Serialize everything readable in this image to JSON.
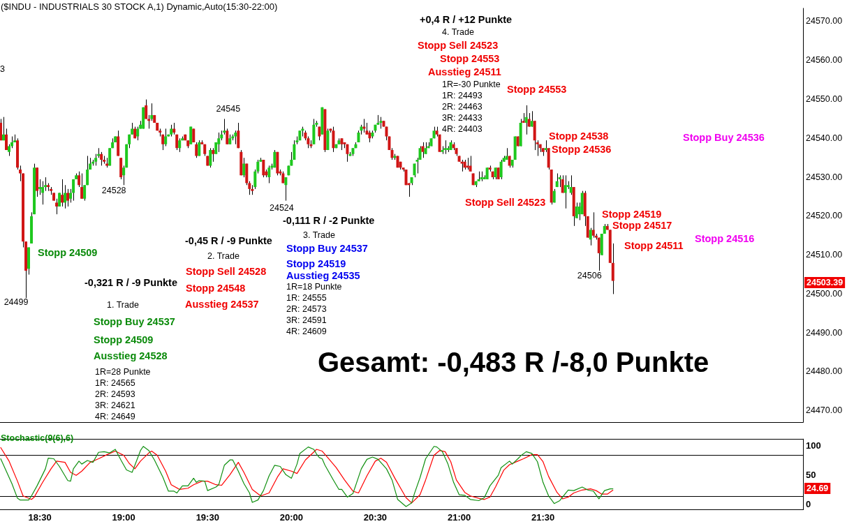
{
  "chart_data": [
    {
      "type": "candlestick",
      "title": "($INDU - INDUSTRIALS 30 STOCK A,1) Dynamic,Auto(15:30-22:00)",
      "x": [
        18.2667,
        18.2833,
        18.3,
        18.3167,
        18.3333,
        18.35,
        18.3667,
        18.3833,
        18.4,
        18.4167,
        18.4333,
        18.45,
        18.4667,
        18.4833,
        18.5,
        18.5167,
        18.5333,
        18.55,
        18.5667,
        18.5833,
        18.6,
        18.6167,
        18.6333,
        18.65,
        18.6667,
        18.6833,
        18.7,
        18.7167,
        18.7333,
        18.75,
        18.7667,
        18.7833,
        18.8,
        18.8167,
        18.8333,
        18.85,
        18.8667,
        18.8833,
        18.9,
        18.9167,
        18.9333,
        18.95,
        18.9667,
        18.9833,
        19,
        19.0167,
        19.0333,
        19.05,
        19.0667,
        19.0833,
        19.1,
        19.1167,
        19.1333,
        19.15,
        19.1667,
        19.1833,
        19.2,
        19.2167,
        19.2333,
        19.25,
        19.2667,
        19.2833,
        19.3,
        19.3167,
        19.3333,
        19.35,
        19.3667,
        19.3833,
        19.4,
        19.4167,
        19.4333,
        19.45,
        19.4667,
        19.4833,
        19.5,
        19.5167,
        19.5333,
        19.55,
        19.5667,
        19.5833,
        19.6,
        19.6167,
        19.6333,
        19.65,
        19.6667,
        19.6833,
        19.7,
        19.7167,
        19.7333,
        19.75,
        19.7667,
        19.7833,
        19.8,
        19.8167,
        19.8333,
        19.85,
        19.8667,
        19.8833,
        19.9,
        19.9167,
        19.9333,
        19.95,
        19.9667,
        19.9833,
        20,
        20.0167,
        20.0333,
        20.05,
        20.0667,
        20.0833,
        20.1,
        20.1167,
        20.1333,
        20.15,
        20.1667,
        20.1833,
        20.2,
        20.2167,
        20.2333,
        20.25,
        20.2667,
        20.2833,
        20.3,
        20.3167,
        20.3333,
        20.35,
        20.3667,
        20.3833,
        20.4,
        20.4167,
        20.4333,
        20.45,
        20.4667,
        20.4833,
        20.5,
        20.5167,
        20.5333,
        20.55,
        20.5667,
        20.5833,
        20.6,
        20.6167,
        20.6333,
        20.65,
        20.6667,
        20.6833,
        20.7,
        20.7167,
        20.7333,
        20.75,
        20.7667,
        20.7833,
        20.8,
        20.8167,
        20.8333,
        20.85,
        20.8667,
        20.8833,
        20.9,
        20.9167,
        20.9333,
        20.95,
        20.9667,
        20.9833,
        21,
        21.0167,
        21.0333,
        21.05,
        21.0667,
        21.0833,
        21.1,
        21.1167,
        21.1333,
        21.15,
        21.1667,
        21.1833,
        21.2,
        21.2167,
        21.2333,
        21.25,
        21.2667,
        21.2833,
        21.3,
        21.3167,
        21.3333,
        21.35,
        21.3667,
        21.3833,
        21.4,
        21.4167,
        21.4333,
        21.45,
        21.4667,
        21.4833,
        21.5,
        21.5167,
        21.5333,
        21.55,
        21.5667,
        21.5833,
        21.6,
        21.6167,
        21.6333,
        21.65,
        21.6667,
        21.6833,
        21.7,
        21.7167,
        21.7333,
        21.75,
        21.7667,
        21.7833,
        21.8,
        21.8167,
        21.8333,
        21.85,
        21.8667,
        21.8833,
        21.9,
        21.9167
      ],
      "ohlc": [
        [
          24544,
          24545,
          24539.5,
          24539.5
        ],
        [
          24539.5,
          24545.5,
          24539.5,
          24541
        ],
        [
          24541,
          24542.5,
          24537,
          24537
        ],
        [
          24536.5,
          24538.5,
          24535.5,
          24538
        ],
        [
          24538,
          24540.5,
          24537.5,
          24539
        ],
        [
          24539,
          24541,
          24539,
          24539.5
        ],
        [
          24539.5,
          24540,
          24532,
          24532.5
        ],
        [
          24532,
          24533,
          24529,
          24531
        ],
        [
          24531,
          24531,
          24512,
          24513.5
        ],
        [
          24513.5,
          24513.5,
          24499,
          24506
        ],
        [
          24506.5,
          24512,
          24505,
          24512
        ],
        [
          24513,
          24521,
          24513,
          24520
        ],
        [
          24520.5,
          24533.5,
          24520.5,
          24532.5
        ],
        [
          24532.5,
          24532.5,
          24525,
          24526.5
        ],
        [
          24527,
          24529.5,
          24525.5,
          24527.5
        ],
        [
          24526,
          24529,
          24523,
          24527.5
        ],
        [
          24527.5,
          24530,
          24526.5,
          24528
        ],
        [
          24528,
          24528.5,
          24526.5,
          24527.5
        ],
        [
          24527,
          24527.5,
          24525.5,
          24526.5
        ],
        [
          24526,
          24526,
          24524,
          24524
        ],
        [
          24523.5,
          24524.5,
          24520.5,
          24522.5
        ],
        [
          24522.5,
          24526,
          24522.5,
          24526
        ],
        [
          24525.5,
          24529.5,
          24522.5,
          24523.5
        ],
        [
          24523.5,
          24528,
          24522,
          24526
        ],
        [
          24526,
          24527,
          24522.5,
          24524
        ],
        [
          24524.5,
          24527,
          24523.5,
          24526
        ],
        [
          24526,
          24529.5,
          24524,
          24529.5
        ],
        [
          24529.5,
          24531,
          24529.5,
          24530.5
        ],
        [
          24530.5,
          24531.5,
          24527.5,
          24528
        ],
        [
          24527.5,
          24531,
          24524.5,
          24524.5
        ],
        [
          24524.5,
          24528,
          24524,
          24528
        ],
        [
          24528,
          24535.5,
          24528,
          24532
        ],
        [
          24532,
          24535,
          24532,
          24533.5
        ],
        [
          24533.5,
          24534.5,
          24533,
          24534
        ],
        [
          24534,
          24536,
          24533,
          24535
        ],
        [
          24535.5,
          24537.5,
          24535,
          24536
        ],
        [
          24536,
          24536.5,
          24533,
          24534.5
        ],
        [
          24534.5,
          24535.5,
          24533.5,
          24534
        ],
        [
          24533.5,
          24535,
          24532.5,
          24533
        ],
        [
          24533,
          24537.5,
          24533,
          24537.5
        ],
        [
          24537.5,
          24540,
          24537.5,
          24539
        ],
        [
          24539,
          24540.5,
          24539,
          24540.5
        ],
        [
          24540.5,
          24542,
          24535.5,
          24535.5
        ],
        [
          24535,
          24535,
          24529.5,
          24530
        ],
        [
          24530.5,
          24533,
          24528,
          24532.5
        ],
        [
          24532.5,
          24538.5,
          24532.5,
          24538.5
        ],
        [
          24538.5,
          24541,
          24537.5,
          24541
        ],
        [
          24541,
          24544,
          24541,
          24542.5
        ],
        [
          24542.5,
          24543,
          24540,
          24540
        ],
        [
          24540.5,
          24543,
          24539.5,
          24542.5
        ],
        [
          24542.5,
          24544.5,
          24542.5,
          24543.5
        ],
        [
          24542.5,
          24548,
          24542.5,
          24548
        ],
        [
          24548.5,
          24550,
          24545,
          24545
        ],
        [
          24545,
          24546,
          24542.5,
          24544.5
        ],
        [
          24545,
          24549,
          24544.5,
          24546
        ],
        [
          24546,
          24546,
          24544,
          24544
        ],
        [
          24544,
          24544,
          24542,
          24542
        ],
        [
          24542,
          24542.5,
          24540.5,
          24541.5
        ],
        [
          24541,
          24541,
          24537,
          24538.5
        ],
        [
          24538.5,
          24542.5,
          24538,
          24540.5
        ],
        [
          24540.5,
          24541,
          24540.5,
          24541
        ],
        [
          24541,
          24543.5,
          24540.5,
          24542.5
        ],
        [
          24542.5,
          24544,
          24541,
          24541.5
        ],
        [
          24541,
          24541,
          24537,
          24537.5
        ],
        [
          24537.5,
          24540,
          24536.5,
          24539.5
        ],
        [
          24539.5,
          24540.5,
          24539.5,
          24540
        ],
        [
          24541,
          24541,
          24539.5,
          24539.5
        ],
        [
          24539.5,
          24539.5,
          24537.5,
          24538
        ],
        [
          24538.5,
          24543,
          24538.5,
          24543
        ],
        [
          24542.5,
          24542.5,
          24539,
          24539
        ],
        [
          24538.5,
          24539,
          24535,
          24535.5
        ],
        [
          24535.5,
          24539.5,
          24535.5,
          24539
        ],
        [
          24539,
          24539.5,
          24538.5,
          24538.5
        ],
        [
          24538.5,
          24538.5,
          24535.5,
          24536
        ],
        [
          24535.5,
          24535.5,
          24533,
          24533
        ],
        [
          24533,
          24537.5,
          24532.5,
          24537
        ],
        [
          24537,
          24537.5,
          24534,
          24536
        ],
        [
          24536,
          24539,
          24536,
          24539
        ],
        [
          24538.5,
          24541.5,
          24536.5,
          24540
        ],
        [
          24540,
          24542,
          24539.5,
          24541
        ],
        [
          24541.5,
          24545,
          24541,
          24542
        ],
        [
          24542,
          24542.5,
          24538.5,
          24538.5
        ],
        [
          24538.5,
          24541,
          24538.5,
          24540
        ],
        [
          24540,
          24541,
          24539.5,
          24540.5
        ],
        [
          24540.5,
          24542,
          24538.5,
          24541.5
        ],
        [
          24542,
          24544,
          24537.5,
          24537.5
        ],
        [
          24536.5,
          24537,
          24530.5,
          24530.5
        ],
        [
          24530.5,
          24535,
          24530,
          24533.5
        ],
        [
          24533.5,
          24533.5,
          24528,
          24528.5
        ],
        [
          24528.5,
          24529,
          24525.5,
          24527
        ],
        [
          24527,
          24528,
          24525.5,
          24526.5
        ],
        [
          24527.5,
          24532,
          24527,
          24531.5
        ],
        [
          24531.5,
          24534.5,
          24531,
          24534
        ],
        [
          24534,
          24535,
          24534,
          24534.5
        ],
        [
          24534.5,
          24534.5,
          24530,
          24530.5
        ],
        [
          24531.5,
          24532,
          24530,
          24530.5
        ],
        [
          24530,
          24533,
          24528.5,
          24532.5
        ],
        [
          24532.5,
          24533.5,
          24532,
          24533
        ],
        [
          24532.5,
          24537,
          24532.5,
          24536.5
        ],
        [
          24536.5,
          24536.5,
          24530.5,
          24531
        ],
        [
          24531.5,
          24532,
          24530.5,
          24531
        ],
        [
          24531,
          24531.5,
          24528.5,
          24528.5
        ],
        [
          24528,
          24530,
          24524,
          24530
        ],
        [
          24530.5,
          24533,
          24530.5,
          24533
        ],
        [
          24533,
          24536.5,
          24533,
          24534.5
        ],
        [
          24534.5,
          24539.5,
          24534.5,
          24538.5
        ],
        [
          24539,
          24540.5,
          24538.5,
          24539.5
        ],
        [
          24539.5,
          24542,
          24539.5,
          24542
        ],
        [
          24542,
          24543,
          24540.5,
          24542.5
        ],
        [
          24541.5,
          24542,
          24539.5,
          24540
        ],
        [
          24540,
          24540.5,
          24537.5,
          24538.5
        ],
        [
          24538.5,
          24539.5,
          24537.5,
          24538
        ],
        [
          24538.5,
          24545,
          24538.5,
          24543.5
        ],
        [
          24543.5,
          24544.5,
          24543,
          24544
        ],
        [
          24543,
          24543,
          24539.5,
          24540.5
        ],
        [
          24541,
          24548,
          24541,
          24548
        ],
        [
          24547.5,
          24547.5,
          24536.5,
          24537
        ],
        [
          24537,
          24542.5,
          24537,
          24542
        ],
        [
          24542.5,
          24542.5,
          24541.5,
          24542
        ],
        [
          24542,
          24543,
          24536.5,
          24537.5
        ],
        [
          24537.5,
          24538.5,
          24537.5,
          24538.5
        ],
        [
          24538.5,
          24540,
          24538.5,
          24539.5
        ],
        [
          24540,
          24540,
          24537,
          24538.5
        ],
        [
          24539,
          24539,
          24537.5,
          24538.5
        ],
        [
          24538.5,
          24538.5,
          24534,
          24536
        ],
        [
          24535.5,
          24536.5,
          24535.5,
          24536
        ],
        [
          24536,
          24537.5,
          24535.5,
          24537.5
        ],
        [
          24537.5,
          24539,
          24537.5,
          24538.5
        ],
        [
          24539,
          24542,
          24539,
          24541.5
        ],
        [
          24542,
          24543.5,
          24541,
          24543
        ],
        [
          24543,
          24545,
          24541.5,
          24542.5
        ],
        [
          24542,
          24544,
          24541,
          24541
        ],
        [
          24541.5,
          24542,
          24539,
          24540
        ],
        [
          24540.5,
          24542,
          24540,
          24541.5
        ],
        [
          24542,
          24543.5,
          24541.5,
          24543.5
        ],
        [
          24543.5,
          24546,
          24543.5,
          24544
        ],
        [
          24544,
          24545.5,
          24542.5,
          24544.5
        ],
        [
          24544.5,
          24544.5,
          24543,
          24543
        ],
        [
          24543,
          24543,
          24539.5,
          24540.5
        ],
        [
          24540.5,
          24540.5,
          24537,
          24537
        ],
        [
          24537,
          24537.5,
          24534.5,
          24535
        ],
        [
          24535,
          24536,
          24534.5,
          24535.5
        ],
        [
          24535.5,
          24535.5,
          24532.5,
          24532.5
        ],
        [
          24534,
          24534,
          24532,
          24532.5
        ],
        [
          24532.5,
          24532.5,
          24531.5,
          24532
        ],
        [
          24532,
          24532,
          24528,
          24528
        ],
        [
          24528.5,
          24528.5,
          24525,
          24528
        ],
        [
          24528.5,
          24530,
          24528,
          24530
        ],
        [
          24530.5,
          24533.5,
          24530,
          24533.5
        ],
        [
          24534,
          24535,
          24531,
          24534.5
        ],
        [
          24534.5,
          24538,
          24534.5,
          24537.5
        ],
        [
          24538,
          24539,
          24535,
          24536.5
        ],
        [
          24536,
          24539,
          24536,
          24537.5
        ],
        [
          24537.5,
          24539,
          24537.5,
          24538
        ],
        [
          24538,
          24540,
          24538,
          24540
        ],
        [
          24540,
          24543,
          24540,
          24542
        ],
        [
          24542,
          24543,
          24540.5,
          24541
        ],
        [
          24541,
          24541,
          24536.5,
          24536.5
        ],
        [
          24536.5,
          24538,
          24536,
          24537
        ],
        [
          24537,
          24539.5,
          24536,
          24537.5
        ],
        [
          24537,
          24538,
          24536.5,
          24537.5
        ],
        [
          24537,
          24539.5,
          24537,
          24539
        ],
        [
          24538.5,
          24539,
          24537,
          24537.5
        ],
        [
          24537.5,
          24537.5,
          24535.5,
          24536
        ],
        [
          24535.5,
          24535.5,
          24534,
          24534
        ],
        [
          24534,
          24534.5,
          24531.5,
          24533.5
        ],
        [
          24534,
          24534.5,
          24532,
          24532.5
        ],
        [
          24533,
          24535,
          24532,
          24532.5
        ],
        [
          24533,
          24535.5,
          24531.5,
          24531.5
        ],
        [
          24531,
          24531,
          24528,
          24528
        ],
        [
          24528,
          24529,
          24527.5,
          24529
        ],
        [
          24529,
          24531.5,
          24529,
          24529.5
        ],
        [
          24529.5,
          24531.5,
          24529,
          24530
        ],
        [
          24529.5,
          24530.5,
          24529.5,
          24530
        ],
        [
          24529.5,
          24532.5,
          24529.5,
          24532.5
        ],
        [
          24532.5,
          24533,
          24531.5,
          24532
        ],
        [
          24531.5,
          24531.5,
          24529.5,
          24530
        ],
        [
          24530,
          24532.5,
          24529.5,
          24532.5
        ],
        [
          24532.5,
          24532.5,
          24529.5,
          24529.5
        ],
        [
          24530,
          24534.5,
          24529.5,
          24534
        ],
        [
          24534,
          24535.5,
          24534,
          24535
        ],
        [
          24534.5,
          24537.5,
          24534.5,
          24535.5
        ],
        [
          24535.5,
          24535.5,
          24532.5,
          24533
        ],
        [
          24533,
          24534.5,
          24532.5,
          24534.5
        ],
        [
          24534.5,
          24540.5,
          24534.5,
          24540.5
        ],
        [
          24540.5,
          24540.5,
          24538,
          24538
        ],
        [
          24538,
          24545,
          24538,
          24544
        ],
        [
          24544.5,
          24546.5,
          24544,
          24544
        ],
        [
          24544,
          24548.5,
          24541,
          24545.5
        ],
        [
          24545,
          24546.5,
          24543,
          24543
        ],
        [
          24543,
          24547,
          24543,
          24544.5
        ],
        [
          24544.5,
          24544.5,
          24537,
          24539.5
        ],
        [
          24539,
          24539.5,
          24535.5,
          24538.5
        ],
        [
          24538.5,
          24538.5,
          24536.5,
          24537.5
        ],
        [
          24537.5,
          24537.5,
          24535.5,
          24536.5
        ],
        [
          24537,
          24539.5,
          24536.5,
          24537.5
        ],
        [
          24537.5,
          24537.5,
          24532,
          24532.5
        ],
        [
          24532,
          24532,
          24523,
          24523.5
        ],
        [
          24523.5,
          24527,
          24523.5,
          24526.5
        ],
        [
          24527.5,
          24531,
          24527.5,
          24529
        ],
        [
          24529.5,
          24530.5,
          24527.5,
          24530
        ],
        [
          24529.5,
          24530.5,
          24526,
          24526
        ],
        [
          24526,
          24530.5,
          24522,
          24528
        ],
        [
          24527.5,
          24529,
          24527,
          24528
        ],
        [
          24526,
          24530.5,
          24525.5,
          24527.5
        ],
        [
          24527.5,
          24527.5,
          24517.5,
          24520
        ],
        [
          24519.5,
          24523.5,
          24519.5,
          24522.5
        ],
        [
          24520.5,
          24523.5,
          24519,
          24522.5
        ],
        [
          24520.5,
          24526.5,
          24520.5,
          24526
        ],
        [
          24526,
          24526.5,
          24517.5,
          24520
        ],
        [
          24520,
          24520,
          24514.5,
          24514.5
        ],
        [
          24514,
          24517,
          24512.5,
          24516.5
        ],
        [
          24516.5,
          24521,
          24514.5,
          24515
        ],
        [
          24515,
          24515.5,
          24514,
          24514.5
        ],
        [
          24514.5,
          24514.5,
          24506,
          24510.5
        ],
        [
          24510,
          24515.5,
          24510,
          24515.5
        ],
        [
          24515.5,
          24518,
          24515.5,
          24517.5
        ],
        [
          24517.5,
          24518,
          24516.5,
          24516.5
        ],
        [
          24516.5,
          24516.5,
          24508,
          24508
        ],
        [
          24508,
          24513,
          24500,
          24503.39
        ]
      ],
      "colors": [
        "#d01515",
        "#1ec81e",
        "#d01515",
        "#1ec81e",
        "#1ec81e",
        "#1ec81e",
        "#d01515",
        "#d01515",
        "#d01515",
        "#d01515",
        "#1ec81e",
        "#1ec81e",
        "#1ec81e",
        "#d01515",
        "#1ec81e",
        "#1ec81e",
        "#1ec81e",
        "#d01515",
        "#d01515",
        "#d01515",
        "#d01515",
        "#1ec81e",
        "#d01515",
        "#1ec81e",
        "#d01515",
        "#1ec81e",
        "#1ec81e",
        "#1ec81e",
        "#d01515",
        "#d01515",
        "#1ec81e",
        "#1ec81e",
        "#1ec81e",
        "#1ec81e",
        "#1ec81e",
        "#1ec81e",
        "#d01515",
        "#d01515",
        "#d01515",
        "#1ec81e",
        "#1ec81e",
        "#1ec81e",
        "#d01515",
        "#d01515",
        "#1ec81e",
        "#1ec81e",
        "#1ec81e",
        "#1ec81e",
        "#d01515",
        "#1ec81e",
        "#1ec81e",
        "#1ec81e",
        "#d01515",
        "#d01515",
        "#1ec81e",
        "#d01515",
        "#d01515",
        "#d01515",
        "#d01515",
        "#1ec81e",
        "#1ec81e",
        "#1ec81e",
        "#d01515",
        "#d01515",
        "#1ec81e",
        "#1ec81e",
        "#d01515",
        "#d01515",
        "#1ec81e",
        "#d01515",
        "#d01515",
        "#1ec81e",
        "#d01515",
        "#d01515",
        "#d01515",
        "#1ec81e",
        "#d01515",
        "#1ec81e",
        "#1ec81e",
        "#1ec81e",
        "#1ec81e",
        "#d01515",
        "#1ec81e",
        "#1ec81e",
        "#1ec81e",
        "#d01515",
        "#d01515",
        "#1ec81e",
        "#d01515",
        "#d01515",
        "#d01515",
        "#1ec81e",
        "#1ec81e",
        "#1ec81e",
        "#d01515",
        "#d01515",
        "#1ec81e",
        "#1ec81e",
        "#1ec81e",
        "#d01515",
        "#d01515",
        "#d01515",
        "#1ec81e",
        "#1ec81e",
        "#1ec81e",
        "#1ec81e",
        "#1ec81e",
        "#1ec81e",
        "#1ec81e",
        "#d01515",
        "#d01515",
        "#d01515",
        "#1ec81e",
        "#1ec81e",
        "#d01515",
        "#1ec81e",
        "#d01515",
        "#1ec81e",
        "#d01515",
        "#d01515",
        "#1ec81e",
        "#1ec81e",
        "#d01515",
        "#d01515",
        "#d01515",
        "#1ec81e",
        "#1ec81e",
        "#1ec81e",
        "#1ec81e",
        "#1ec81e",
        "#d01515",
        "#d01515",
        "#d01515",
        "#1ec81e",
        "#1ec81e",
        "#1ec81e",
        "#1ec81e",
        "#d01515",
        "#d01515",
        "#d01515",
        "#d01515",
        "#1ec81e",
        "#d01515",
        "#d01515",
        "#d01515",
        "#d01515",
        "#d01515",
        "#1ec81e",
        "#1ec81e",
        "#1ec81e",
        "#1ec81e",
        "#d01515",
        "#1ec81e",
        "#1ec81e",
        "#1ec81e",
        "#1ec81e",
        "#d01515",
        "#d01515",
        "#1ec81e",
        "#1ec81e",
        "#1ec81e",
        "#1ec81e",
        "#d01515",
        "#d01515",
        "#d01515",
        "#d01515",
        "#d01515",
        "#d01515",
        "#d01515",
        "#d01515",
        "#1ec81e",
        "#1ec81e",
        "#1ec81e",
        "#1ec81e",
        "#1ec81e",
        "#d01515",
        "#d01515",
        "#1ec81e",
        "#d01515",
        "#1ec81e",
        "#1ec81e",
        "#1ec81e",
        "#d01515",
        "#1ec81e",
        "#1ec81e",
        "#d01515",
        "#1ec81e",
        "#d01515",
        "#1ec81e",
        "#d01515",
        "#1ec81e",
        "#d01515",
        "#d01515",
        "#d01515",
        "#d01515",
        "#1ec81e",
        "#d01515",
        "#d01515",
        "#1ec81e",
        "#1ec81e",
        "#1ec81e",
        "#d01515",
        "#1ec81e",
        "#1ec81e",
        "#1ec81e",
        "#d01515",
        "#1ec81e",
        "#1ec81e",
        "#1ec81e",
        "#d01515",
        "#d01515",
        "#1ec81e",
        "#d01515",
        "#d01515",
        "#d01515",
        "#1ec81e",
        "#1ec81e",
        "#d01515",
        "#d01515",
        "#d01515"
      ],
      "xlim": [
        18.2625,
        23.05
      ],
      "ylim": [
        24467,
        24573.5
      ],
      "yticks": [
        {
          "value": 24470,
          "label": "24470.00"
        },
        {
          "value": 24480,
          "label": "24480.00"
        },
        {
          "value": 24490,
          "label": "24490.00"
        },
        {
          "value": 24500,
          "label": "24500.00"
        },
        {
          "value": 24510,
          "label": "24510.00"
        },
        {
          "value": 24520,
          "label": "24520.00"
        },
        {
          "value": 24530,
          "label": "24530.00"
        },
        {
          "value": 24540,
          "label": "24540.00"
        },
        {
          "value": 24550,
          "label": "24550.00"
        },
        {
          "value": 24560,
          "label": "24560.00"
        },
        {
          "value": 24570,
          "label": "24570.00"
        }
      ],
      "tick_labels": "y",
      "annotations": [
        "3",
        "+0,4 R / +12 Punkte",
        "4. Trade",
        "Stopp Sell 24523",
        "Stopp 24553",
        "Ausstieg 24511",
        "1R=-30 Punkte",
        "1R: 24493",
        "2R: 24463",
        "3R: 24433",
        "4R: 24403",
        "Stopp 24553",
        {
          "text": "24545",
          "x": 19.6,
          "y": 24545
        },
        "Stopp 24538",
        "Stopp 24536",
        "Stopp Buy 24536",
        {
          "text": "24528",
          "x": 19,
          "y": 24528
        },
        {
          "text": "24524",
          "x": 19.9667,
          "y": 24524
        },
        "Stopp Sell 24523",
        "Stopp 24519",
        "-0,111 R / -2 Punkte",
        "Stopp 24517",
        "3. Trade",
        "Stopp 24516",
        "-0,45 R / -9 Punkte",
        "Stopp 24511",
        "Stopp Buy 24537",
        "Stopp 24509",
        "2. Trade",
        "Stopp 24519",
        "Stopp Sell 24528",
        "Ausstieg 24535",
        {
          "text": "24506",
          "x": 21.8333,
          "y": 24506
        },
        "-0,321 R / -9 Punkte",
        "1R=18 Punkte",
        "Stopp 24548",
        "1R: 24555",
        {
          "text": "24499",
          "x": 18.4167,
          "y": 24499
        },
        "1. Trade",
        "Ausstieg 24537",
        "2R: 24573",
        "3R: 24591",
        "Stopp Buy 24537",
        "4R: 24609",
        "Stopp 24509",
        "Ausstieg 24528",
        "Gesamt: -0,483 R /-8,0 Punkte",
        "1R=28 Punkte",
        "1R: 24565",
        "2R: 24593",
        "3R: 24621",
        "4R: 24649",
        "24503.39"
      ]
    },
    {
      "type": "line",
      "title": "Stochastic(9(6),6)",
      "series": [
        {
          "color": "#109010",
          "x": [
            18.2667,
            18.3333,
            18.3667,
            18.3833,
            18.4333,
            18.45,
            18.4833,
            18.5333,
            18.55,
            18.5833,
            18.6167,
            18.6667,
            18.6833,
            18.7,
            18.7333,
            18.75,
            18.7833,
            18.8167,
            18.85,
            18.8833,
            18.9167,
            18.95,
            18.9833,
            19.0167,
            19.05,
            19.0667,
            19.1,
            19.1167,
            19.15,
            19.1833,
            19.2333,
            19.2667,
            19.3,
            19.3167,
            19.35,
            19.3833,
            19.4167,
            19.4333,
            19.45,
            19.4833,
            19.5,
            19.55,
            19.5667,
            19.6,
            19.6333,
            19.65,
            19.6833,
            19.7167,
            19.75,
            19.7667,
            19.8,
            19.8333,
            19.8667,
            19.9,
            19.9333,
            19.9667,
            20,
            20.0333,
            20.05,
            20.1,
            20.1333,
            20.15,
            20.1667,
            20.1833,
            20.2,
            20.25,
            20.2833,
            20.3,
            20.3333,
            20.3667,
            20.4167,
            20.45,
            20.4833,
            20.5167,
            20.5667,
            20.6,
            20.6333,
            20.6833,
            20.7167,
            20.7333,
            20.7667,
            20.8,
            20.85,
            20.8667,
            20.9,
            20.9333,
            20.9667,
            21,
            21.0333,
            21.0667,
            21.1167,
            21.15,
            21.1833,
            21.2333,
            21.25,
            21.3,
            21.3167,
            21.35,
            21.3667,
            21.4,
            21.4333,
            21.4667,
            21.5,
            21.5333,
            21.5667,
            21.6,
            21.6167,
            21.65,
            21.6833,
            21.7333,
            21.7667,
            21.8,
            21.8333,
            21.8667,
            21.9,
            21.9167
          ],
          "values": [
            78,
            36,
            11,
            8,
            8,
            15,
            32,
            61,
            79,
            78,
            65,
            41,
            40,
            61,
            74,
            69,
            75,
            72,
            89,
            90,
            88,
            94,
            76,
            59,
            55,
            67,
            92,
            99,
            92,
            76,
            47,
            23,
            23,
            20,
            32,
            32,
            45,
            38,
            41,
            40,
            24,
            30,
            34,
            67,
            76,
            76,
            57,
            36,
            20,
            4,
            8,
            24,
            49,
            67,
            65,
            51,
            45,
            69,
            87,
            98,
            94,
            86,
            80,
            78,
            67,
            42,
            26,
            26,
            13,
            19,
            61,
            77,
            81,
            77,
            61,
            42,
            9,
            -3,
            3,
            19,
            46,
            78,
            99,
            98,
            90,
            69,
            38,
            17,
            16,
            9,
            7,
            12,
            32,
            50,
            63,
            74,
            69,
            78,
            83,
            90,
            87,
            73,
            38,
            15,
            2,
            7,
            13,
            25,
            24,
            30,
            25,
            23,
            10,
            24,
            27,
            27
          ]
        },
        {
          "color": "#ff0000",
          "x": [
            18.2667,
            18.3167,
            18.3667,
            18.4,
            18.45,
            18.4667,
            18.5167,
            18.5667,
            18.6,
            18.65,
            18.6833,
            18.7167,
            18.75,
            18.8,
            18.85,
            18.9,
            18.95,
            19,
            19.0333,
            19.0667,
            19.1,
            19.15,
            19.1667,
            19.2,
            19.25,
            19.2833,
            19.3333,
            19.3833,
            19.4167,
            19.4667,
            19.5,
            19.55,
            19.5833,
            19.6333,
            19.6833,
            19.7167,
            19.7667,
            19.8167,
            19.8667,
            19.9167,
            19.95,
            20,
            20.0333,
            20.0833,
            20.15,
            20.1833,
            20.2167,
            20.2667,
            20.3167,
            20.3667,
            20.4,
            20.45,
            20.5,
            20.5333,
            20.5667,
            20.6167,
            20.6833,
            20.7167,
            20.7667,
            20.8,
            20.85,
            20.8833,
            20.9167,
            20.95,
            20.9833,
            21.0333,
            21.0667,
            21.1167,
            21.15,
            21.1833,
            21.2167,
            21.2667,
            21.3,
            21.35,
            21.3833,
            21.4333,
            21.4667,
            21.5,
            21.5333,
            21.5833,
            21.6167,
            21.65,
            21.6833,
            21.7333,
            21.7833,
            21.8167,
            21.85,
            21.8833,
            21.9167
          ],
          "values": [
            97,
            74,
            40,
            15,
            9,
            13,
            38,
            61,
            74,
            72,
            55,
            50,
            57,
            72,
            78,
            85,
            91,
            84,
            70,
            61,
            74,
            88,
            91,
            84,
            57,
            34,
            26,
            28,
            34,
            40,
            40,
            34,
            33,
            51,
            72,
            55,
            26,
            15,
            20,
            47,
            61,
            57,
            53,
            76,
            94,
            91,
            80,
            63,
            42,
            23,
            20,
            49,
            74,
            79,
            72,
            45,
            12,
            3,
            17,
            42,
            84,
            92,
            90,
            73,
            42,
            21,
            15,
            11,
            9,
            13,
            30,
            59,
            68,
            74,
            78,
            85,
            85,
            73,
            48,
            21,
            10,
            13,
            20,
            25,
            27,
            24,
            18,
            18,
            24.69
          ]
        }
      ],
      "xlim": [
        18.2625,
        23.05
      ],
      "xticks": [
        {
          "value": 18.5,
          "label": "18:30"
        },
        {
          "value": 19,
          "label": "19:00"
        },
        {
          "value": 19.5,
          "label": "19:30"
        },
        {
          "value": 20,
          "label": "20:00"
        },
        {
          "value": 20.5,
          "label": "20:30"
        },
        {
          "value": 21,
          "label": "21:00"
        },
        {
          "value": 21.5,
          "label": "21:30"
        }
      ],
      "ylim": [
        -9,
        112
      ],
      "yticks": [
        0,
        50,
        100
      ],
      "ref_lines": [
        {
          "axis": "y",
          "value": 85,
          "color": "#000000"
        },
        {
          "axis": "y",
          "value": 15,
          "color": "#000000"
        }
      ],
      "marker": "none",
      "annotations": [
        "24.69"
      ]
    }
  ]
}
